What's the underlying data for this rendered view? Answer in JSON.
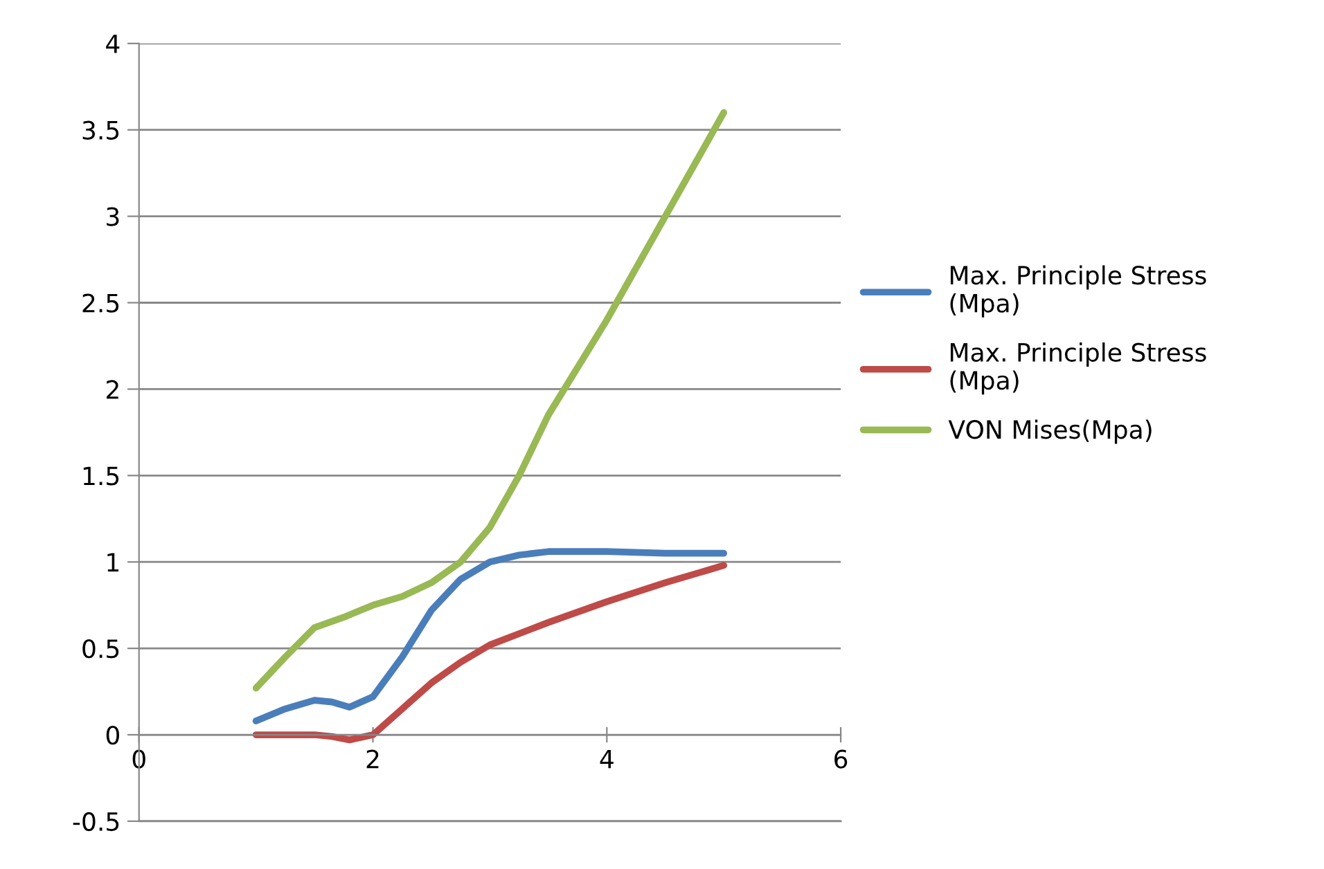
{
  "chart_data": {
    "type": "line",
    "series": [
      {
        "name": "Max. Principle Stress (Mpa)",
        "color": "#4a7ebb",
        "x": [
          1,
          1.25,
          1.5,
          1.65,
          1.8,
          2,
          2.25,
          2.5,
          2.75,
          3,
          3.25,
          3.5,
          4,
          4.5,
          5
        ],
        "values": [
          0.08,
          0.15,
          0.2,
          0.19,
          0.16,
          0.22,
          0.45,
          0.72,
          0.9,
          1.0,
          1.04,
          1.06,
          1.06,
          1.05,
          1.05
        ]
      },
      {
        "name": "Max. Principle Stress (Mpa)",
        "color": "#be4b48",
        "x": [
          1,
          1.5,
          1.65,
          1.8,
          2,
          2.25,
          2.5,
          2.75,
          3,
          3.5,
          4,
          4.5,
          5
        ],
        "values": [
          0,
          0,
          -0.01,
          -0.03,
          0,
          0.15,
          0.3,
          0.42,
          0.52,
          0.65,
          0.77,
          0.88,
          0.98
        ]
      },
      {
        "name": "VON Mises(Mpa)",
        "color": "#98b954",
        "x": [
          1,
          1.25,
          1.5,
          1.75,
          2,
          2.25,
          2.5,
          2.75,
          3,
          3.25,
          3.5,
          4,
          4.5,
          5
        ],
        "values": [
          0.27,
          0.45,
          0.62,
          0.68,
          0.75,
          0.8,
          0.88,
          1.0,
          1.2,
          1.5,
          1.85,
          2.4,
          3.0,
          3.6
        ]
      }
    ],
    "xlim": [
      0,
      6
    ],
    "xticks": [
      0,
      2,
      4,
      6
    ],
    "ylim": [
      -0.5,
      4
    ],
    "yticks": [
      -0.5,
      0,
      0.5,
      1,
      1.5,
      2,
      2.5,
      3,
      3.5,
      4
    ],
    "grid": "y",
    "legend": "right",
    "marker": "none",
    "line_style": "solid"
  }
}
